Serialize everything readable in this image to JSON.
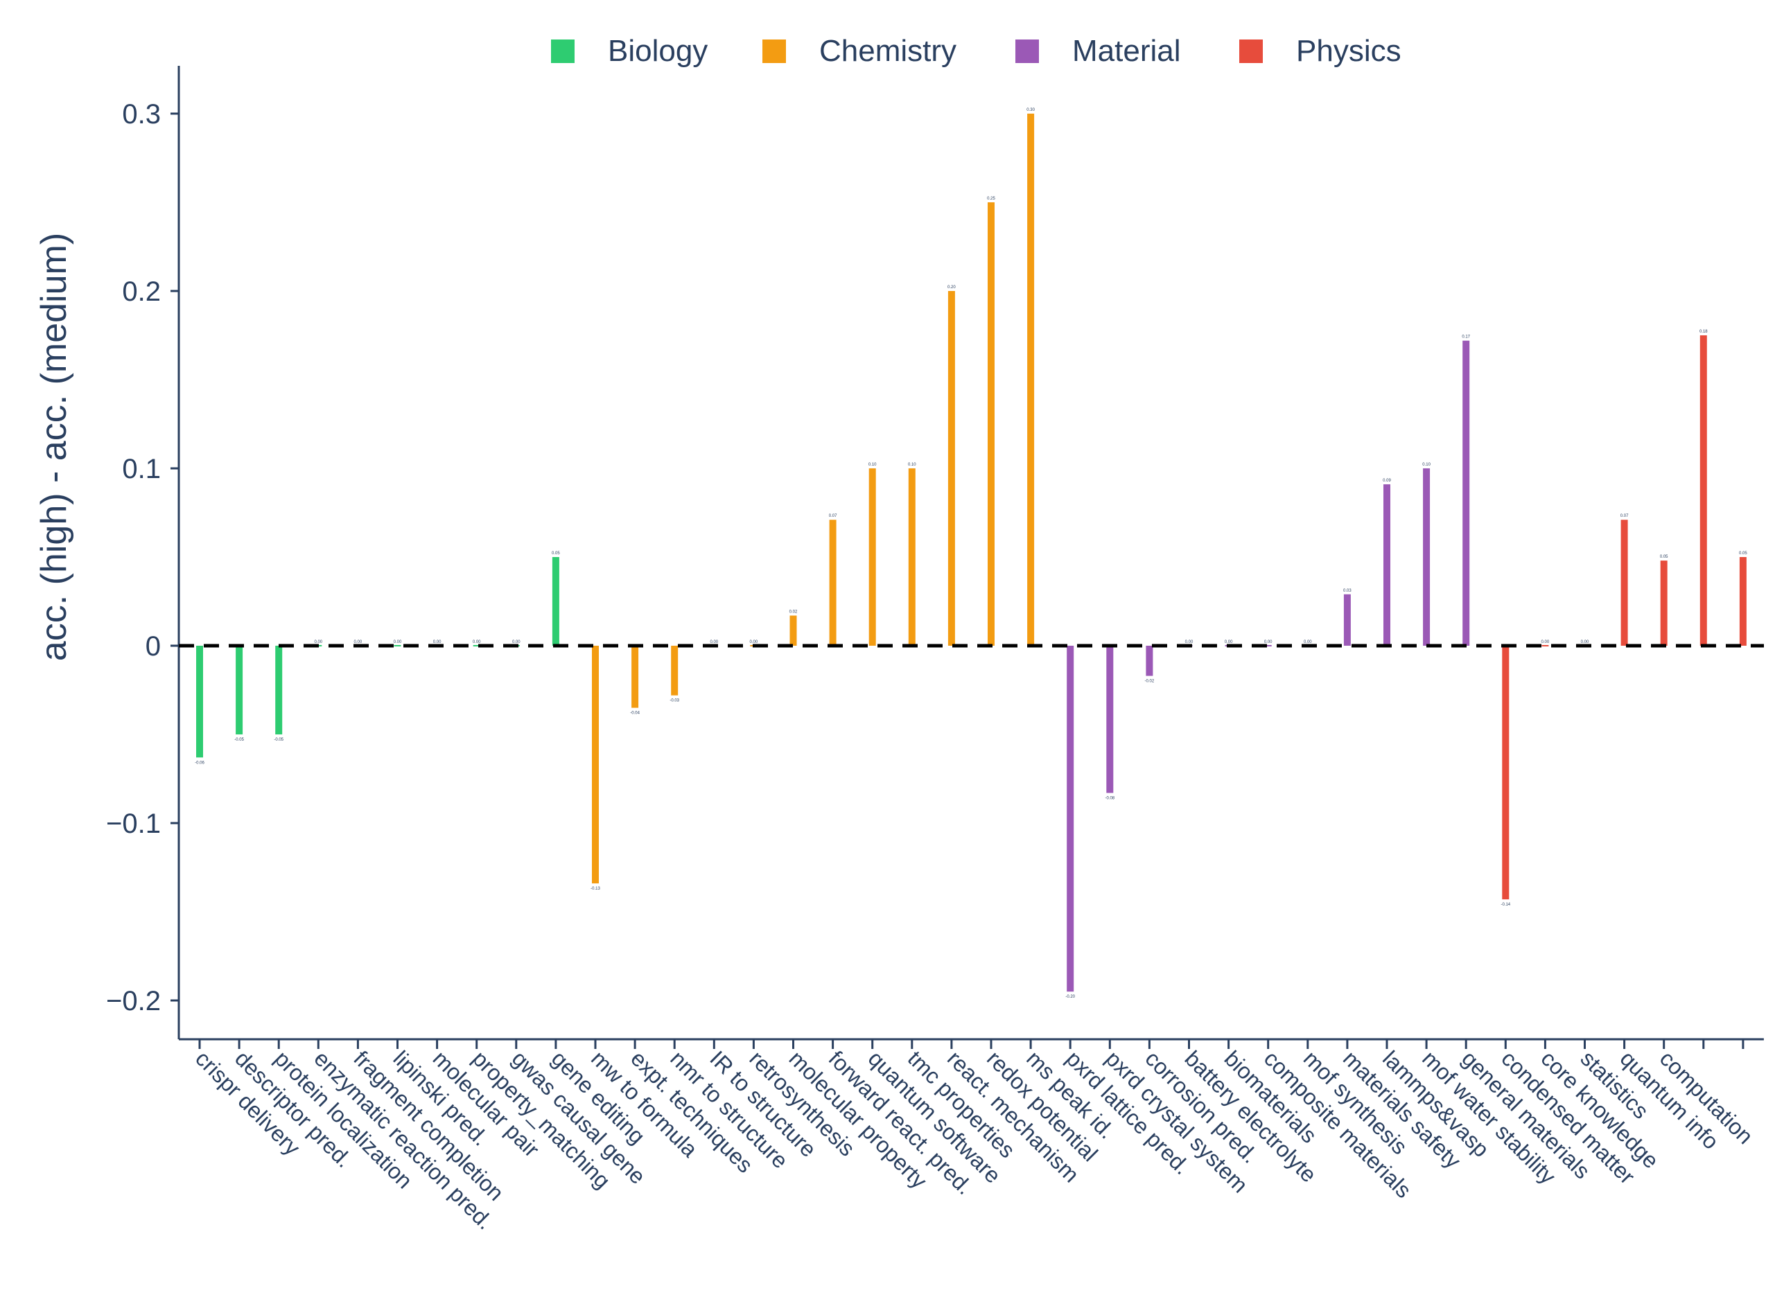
{
  "chart_data": {
    "type": "bar",
    "title": "",
    "xlabel": "",
    "ylabel": "acc. (high) - acc. (medium)",
    "ylim": [
      -0.22,
      0.325
    ],
    "yticks": [
      -0.2,
      -0.1,
      0,
      0.1,
      0.2,
      0.3
    ],
    "ytick_labels": [
      "−0.2",
      "−0.1",
      "0",
      "0.1",
      "0.2",
      "0.3"
    ],
    "grid": false,
    "zero_line": "dashed",
    "legend": {
      "position": "top",
      "entries": [
        {
          "name": "Biology",
          "color": "#2ecc71"
        },
        {
          "name": "Chemistry",
          "color": "#f39c12"
        },
        {
          "name": "Material",
          "color": "#9b59b6"
        },
        {
          "name": "Physics",
          "color": "#e74c3c"
        }
      ]
    },
    "bars": [
      {
        "category": "crispr delivery",
        "group": "Biology",
        "value": -0.063,
        "label": "-0.06"
      },
      {
        "category": "descriptor pred.",
        "group": "Biology",
        "value": -0.05,
        "label": "-0.05"
      },
      {
        "category": "protein localization",
        "group": "Biology",
        "value": -0.05,
        "label": "-0.05"
      },
      {
        "category": "enzymatic reaction pred.",
        "group": "Biology",
        "value": 0.0,
        "label": "0.00"
      },
      {
        "category": "fragment completion",
        "group": "Biology",
        "value": 0.0,
        "label": "0.00"
      },
      {
        "category": "lipinski pred.",
        "group": "Biology",
        "value": 0.0,
        "label": "0.00"
      },
      {
        "category": "molecular pair",
        "group": "Biology",
        "value": 0.0,
        "label": "0.00"
      },
      {
        "category": "property_matching",
        "group": "Biology",
        "value": 0.0,
        "label": "0.00"
      },
      {
        "category": "gwas causal gene",
        "group": "Biology",
        "value": 0.0,
        "label": "0.00"
      },
      {
        "category": "gene editing",
        "group": "Biology",
        "value": 0.05,
        "label": "0.05"
      },
      {
        "category": "mw to formula",
        "group": "Chemistry",
        "value": -0.134,
        "label": "-0.13"
      },
      {
        "category": "expt. techniques",
        "group": "Chemistry",
        "value": -0.035,
        "label": "-0.04"
      },
      {
        "category": "nmr to structure",
        "group": "Chemistry",
        "value": -0.028,
        "label": "-0.03"
      },
      {
        "category": "IR to structure",
        "group": "Chemistry",
        "value": 0.0,
        "label": "0.00"
      },
      {
        "category": "retrosynthesis",
        "group": "Chemistry",
        "value": 0.0,
        "label": "0.00"
      },
      {
        "category": "molecular property",
        "group": "Chemistry",
        "value": 0.017,
        "label": "0.02"
      },
      {
        "category": "forward react. pred.",
        "group": "Chemistry",
        "value": 0.071,
        "label": "0.07"
      },
      {
        "category": "quantum software",
        "group": "Chemistry",
        "value": 0.1,
        "label": "0.10"
      },
      {
        "category": "tmc properties",
        "group": "Chemistry",
        "value": 0.1,
        "label": "0.10"
      },
      {
        "category": "react. mechanism",
        "group": "Chemistry",
        "value": 0.2,
        "label": "0.20"
      },
      {
        "category": "redox potential",
        "group": "Chemistry",
        "value": 0.25,
        "label": "0.25"
      },
      {
        "category": "ms peak id.",
        "group": "Chemistry",
        "value": 0.3,
        "label": "0.30"
      },
      {
        "category": "pxrd lattice pred.",
        "group": "Material",
        "value": -0.195,
        "label": "-0.20"
      },
      {
        "category": "pxrd crystal system",
        "group": "Material",
        "value": -0.083,
        "label": "-0.08"
      },
      {
        "category": "corrosion pred.",
        "group": "Material",
        "value": -0.017,
        "label": "-0.02"
      },
      {
        "category": "battery electrolyte",
        "group": "Material",
        "value": 0.0,
        "label": "0.00"
      },
      {
        "category": "biomaterials",
        "group": "Material",
        "value": 0.0,
        "label": "0.00"
      },
      {
        "category": "composite materials",
        "group": "Material",
        "value": 0.0,
        "label": "0.00"
      },
      {
        "category": "mof synthesis",
        "group": "Material",
        "value": 0.0,
        "label": "0.00"
      },
      {
        "category": "materials safety",
        "group": "Material",
        "value": 0.029,
        "label": "0.03"
      },
      {
        "category": "lammps&vasp",
        "group": "Material",
        "value": 0.091,
        "label": "0.09"
      },
      {
        "category": "mof water stability",
        "group": "Material",
        "value": 0.1,
        "label": "0.10"
      },
      {
        "category": "general materials",
        "group": "Material",
        "value": 0.172,
        "label": "0.17"
      },
      {
        "category": "condensed matter",
        "group": "Physics",
        "value": -0.143,
        "label": "-0.14"
      },
      {
        "category": "core knowledge",
        "group": "Physics",
        "value": 0.0,
        "label": "0.00"
      },
      {
        "category": "statistics",
        "group": "Physics",
        "value": 0.0,
        "label": "0.00"
      },
      {
        "category": "quantum info",
        "group": "Physics",
        "value": 0.071,
        "label": "0.07"
      },
      {
        "category": "computation",
        "group": "Physics",
        "value": 0.048,
        "label": "0.05"
      },
      {
        "category": "",
        "group": "Physics",
        "value": 0.175,
        "label": "0.18"
      },
      {
        "category": "",
        "group": "Physics",
        "value": 0.05,
        "label": "0.05"
      }
    ]
  }
}
